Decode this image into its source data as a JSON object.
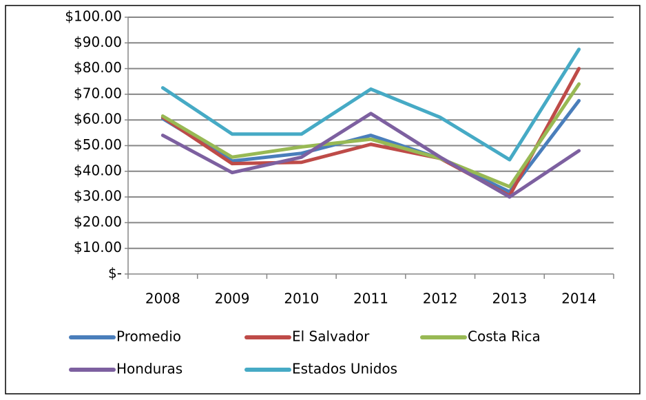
{
  "chart_data": {
    "type": "line",
    "categories": [
      "2008",
      "2009",
      "2010",
      "2011",
      "2012",
      "2013",
      "2014"
    ],
    "series": [
      {
        "name": "Promedio",
        "color": "#4a7ebb",
        "values": [
          60.5,
          44,
          47,
          54,
          45,
          32,
          67.5
        ]
      },
      {
        "name": "El Salvador",
        "color": "#be4b48",
        "values": [
          61,
          43,
          43.5,
          50.5,
          45,
          30.5,
          80
        ]
      },
      {
        "name": "Costa Rica",
        "color": "#98b954",
        "values": [
          61.5,
          45.5,
          49.5,
          52.5,
          45,
          34,
          74
        ]
      },
      {
        "name": "Honduras",
        "color": "#7d60a0",
        "values": [
          54,
          39.5,
          45.5,
          62.5,
          45.5,
          30,
          48
        ]
      },
      {
        "name": "Estados Unidos",
        "color": "#46aac5",
        "values": [
          72.5,
          54.5,
          54.5,
          72,
          61,
          44.5,
          87.5
        ]
      }
    ],
    "ylim": [
      0,
      100
    ],
    "yticks": [
      {
        "value": 0,
        "label": "$-"
      },
      {
        "value": 10,
        "label": "$10.00"
      },
      {
        "value": 20,
        "label": "$20.00"
      },
      {
        "value": 30,
        "label": "$30.00"
      },
      {
        "value": 40,
        "label": "$40.00"
      },
      {
        "value": 50,
        "label": "$50.00"
      },
      {
        "value": 60,
        "label": "$60.00"
      },
      {
        "value": 70,
        "label": "$70.00"
      },
      {
        "value": 80,
        "label": "$80.00"
      },
      {
        "value": 90,
        "label": "$90.00"
      },
      {
        "value": 100,
        "label": "$100.00"
      }
    ],
    "grid": true,
    "legend": "bottom"
  }
}
